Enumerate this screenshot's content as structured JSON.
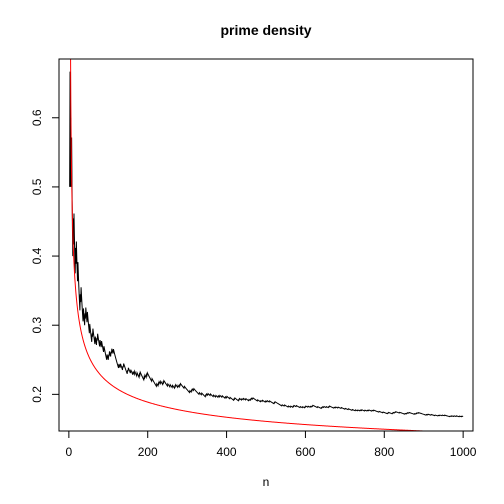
{
  "chart_data": {
    "type": "line",
    "title": "prime density",
    "xlabel": "n",
    "ylabel": "",
    "xlim": [
      -25,
      1025
    ],
    "ylim": [
      0.147,
      0.685
    ],
    "xticks": [
      0,
      200,
      400,
      600,
      800,
      1000
    ],
    "yticks": [
      0.2,
      0.3,
      0.4,
      0.5,
      0.6
    ],
    "ytick_labels": [
      "0.2",
      "0.3",
      "0.4",
      "0.5",
      "0.6"
    ],
    "grid": false,
    "legend": "none",
    "series": [
      {
        "description": "observed fraction of primes <= n, i.e. pi(n)/n",
        "color": "#000000",
        "function": "pi(n)/n",
        "x_range": [
          2,
          1000
        ],
        "sample_points": [
          [
            3,
            0.667
          ],
          [
            10,
            0.4
          ],
          [
            20,
            0.4
          ],
          [
            50,
            0.3
          ],
          [
            100,
            0.25
          ],
          [
            200,
            0.23
          ],
          [
            500,
            0.19
          ],
          [
            1000,
            0.168
          ]
        ]
      },
      {
        "description": "approximation 1/ln(n)",
        "color": "#ff0000",
        "function": "1/ln(n)",
        "x_range": [
          2,
          1000
        ],
        "sample_points": [
          [
            10,
            0.434
          ],
          [
            50,
            0.256
          ],
          [
            100,
            0.217
          ],
          [
            200,
            0.189
          ],
          [
            500,
            0.161
          ],
          [
            1000,
            0.145
          ]
        ]
      }
    ]
  }
}
